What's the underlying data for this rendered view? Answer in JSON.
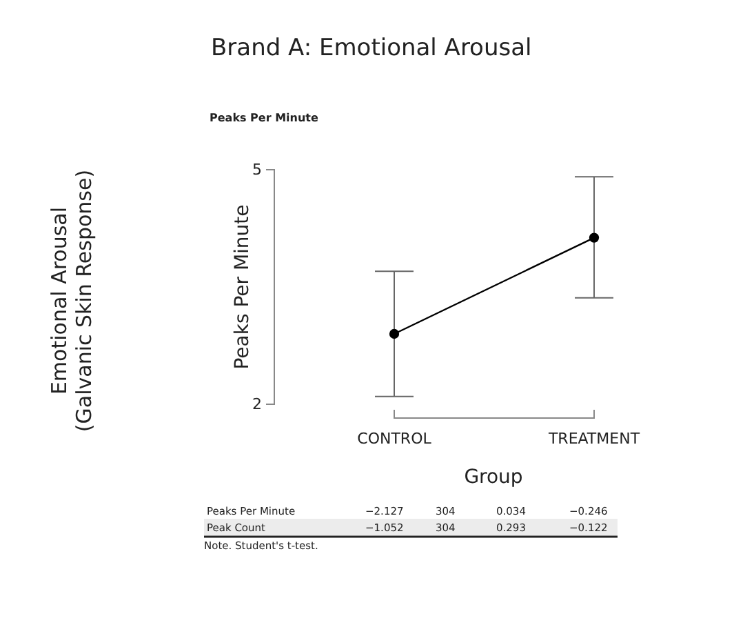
{
  "chart_data": {
    "type": "line",
    "title": "Brand A: Emotional Arousal",
    "subtitle": "Peaks Per Minute",
    "xlabel": "Group",
    "ylabel": "Peaks Per Minute",
    "categories": [
      "CONTROL",
      "TREATMENT"
    ],
    "series": [
      {
        "color": "#000000",
        "values": [
          2.9,
          4.13
        ],
        "errors": [
          [
            2.1,
            3.7
          ],
          [
            3.36,
            4.91
          ]
        ]
      }
    ],
    "ylim": [
      2,
      5
    ],
    "yticks": [
      2,
      5
    ],
    "marker": "circle",
    "line_style": "solid",
    "annotations": [
      "Emotional Arousal\n(Galvanic Skin Response)",
      "Peaks Per Minute",
      "−2.127",
      "304",
      "0.034",
      "−0.246",
      "Peak Count",
      "−1.052",
      "304",
      "0.293",
      "−0.122",
      "Note. Student's t-test."
    ]
  }
}
